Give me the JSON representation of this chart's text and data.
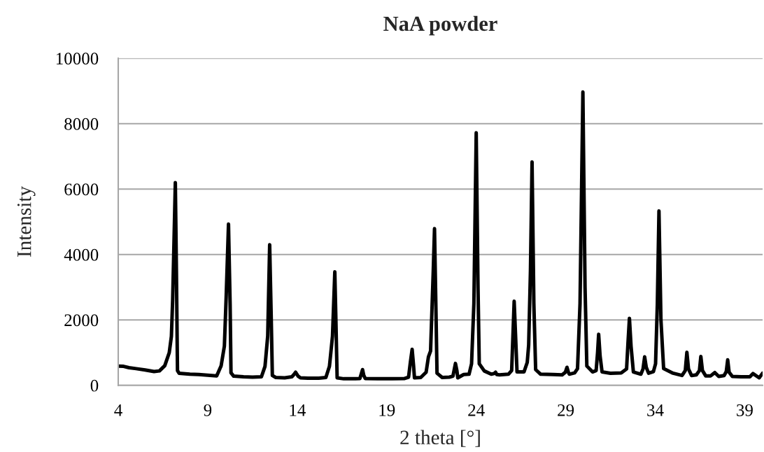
{
  "chart_data": {
    "type": "line",
    "title": "NaA powder",
    "xlabel": "2 theta [°]",
    "ylabel": "Intensity",
    "x": [
      4.0,
      4.3,
      4.6,
      5.0,
      5.5,
      6.0,
      6.3,
      6.6,
      6.85,
      6.97,
      7.04,
      7.12,
      7.19,
      7.25,
      7.31,
      7.4,
      8.0,
      8.5,
      9.0,
      9.5,
      9.75,
      9.93,
      10.03,
      10.16,
      10.25,
      10.3,
      10.45,
      11.0,
      11.5,
      12.0,
      12.2,
      12.35,
      12.46,
      12.55,
      12.61,
      12.8,
      13.3,
      13.7,
      13.8,
      13.91,
      14.05,
      14.18,
      14.6,
      15.2,
      15.6,
      15.8,
      15.97,
      16.1,
      16.18,
      16.23,
      16.6,
      17.2,
      17.5,
      17.58,
      17.65,
      17.72,
      17.8,
      18.5,
      19.3,
      20.0,
      20.22,
      20.32,
      20.42,
      20.5,
      20.55,
      20.9,
      21.2,
      21.33,
      21.45,
      21.6,
      21.67,
      21.76,
      21.81,
      22.1,
      22.5,
      22.7,
      22.78,
      22.84,
      22.92,
      22.97,
      23.3,
      23.6,
      23.74,
      23.87,
      24.0,
      24.1,
      24.17,
      24.45,
      24.84,
      25.0,
      25.08,
      25.15,
      25.3,
      25.8,
      25.98,
      26.05,
      26.12,
      26.2,
      26.28,
      26.67,
      26.85,
      26.93,
      27.03,
      27.12,
      27.22,
      27.32,
      27.6,
      28.3,
      28.8,
      28.98,
      29.07,
      29.15,
      29.2,
      29.5,
      29.66,
      29.8,
      29.96,
      30.08,
      30.18,
      30.5,
      30.7,
      30.78,
      30.84,
      30.92,
      31.03,
      31.5,
      32.1,
      32.4,
      32.48,
      32.56,
      32.65,
      32.78,
      33.2,
      33.32,
      33.41,
      33.5,
      33.63,
      33.9,
      34.02,
      34.12,
      34.21,
      34.32,
      34.47,
      35.0,
      35.5,
      35.68,
      35.77,
      35.86,
      36.03,
      36.3,
      36.47,
      36.55,
      36.64,
      36.82,
      37.1,
      37.33,
      37.55,
      37.85,
      37.97,
      38.05,
      38.13,
      38.31,
      38.8,
      39.29,
      39.46,
      39.81,
      40.0
    ],
    "series": [
      {
        "color": "#000000",
        "values": [
          590,
          580,
          540,
          510,
          470,
          420,
          440,
          600,
          1000,
          1500,
          2600,
          4500,
          6200,
          3500,
          450,
          370,
          340,
          330,
          310,
          290,
          600,
          1200,
          2700,
          4930,
          2500,
          380,
          280,
          260,
          250,
          260,
          580,
          1500,
          4300,
          2000,
          300,
          240,
          230,
          260,
          320,
          400,
          280,
          230,
          220,
          220,
          240,
          580,
          1500,
          3470,
          1500,
          230,
          200,
          200,
          210,
          350,
          480,
          300,
          210,
          200,
          200,
          210,
          250,
          700,
          1100,
          600,
          230,
          240,
          400,
          870,
          1050,
          3500,
          4790,
          2000,
          370,
          240,
          250,
          280,
          500,
          670,
          450,
          230,
          330,
          340,
          660,
          2500,
          7720,
          3000,
          660,
          440,
          340,
          360,
          400,
          330,
          320,
          340,
          450,
          1500,
          2570,
          1500,
          410,
          410,
          700,
          1230,
          3500,
          6830,
          2500,
          480,
          340,
          330,
          320,
          400,
          550,
          400,
          340,
          380,
          510,
          2500,
          8970,
          3000,
          590,
          410,
          450,
          1000,
          1560,
          900,
          410,
          370,
          380,
          500,
          1300,
          2050,
          1200,
          410,
          340,
          500,
          870,
          550,
          370,
          420,
          660,
          2500,
          5330,
          2000,
          510,
          370,
          300,
          450,
          1010,
          500,
          300,
          320,
          450,
          880,
          450,
          290,
          290,
          390,
          270,
          300,
          420,
          780,
          400,
          270,
          260,
          260,
          360,
          230,
          370
        ]
      }
    ],
    "xlim": [
      4,
      40
    ],
    "ylim": [
      0,
      10000
    ],
    "xticks": [
      4,
      9,
      14,
      19,
      24,
      29,
      34,
      39
    ],
    "yticks": [
      0,
      2000,
      4000,
      6000,
      8000,
      10000
    ],
    "grid": "y",
    "line_style": "solid"
  }
}
